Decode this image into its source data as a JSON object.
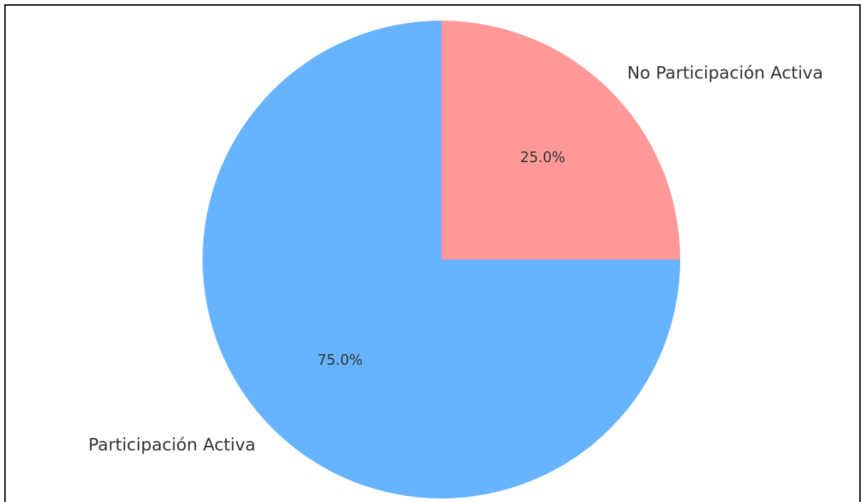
{
  "chart_data": {
    "type": "pie",
    "title": "",
    "start_angle_deg": 90,
    "direction": "clockwise",
    "slices": [
      {
        "label": "No Participación Activa",
        "value": 25.0,
        "percent_label": "25.0%",
        "color": "#ff9999"
      },
      {
        "label": "Participación Activa",
        "value": 75.0,
        "percent_label": "75.0%",
        "color": "#66b3ff"
      }
    ]
  }
}
